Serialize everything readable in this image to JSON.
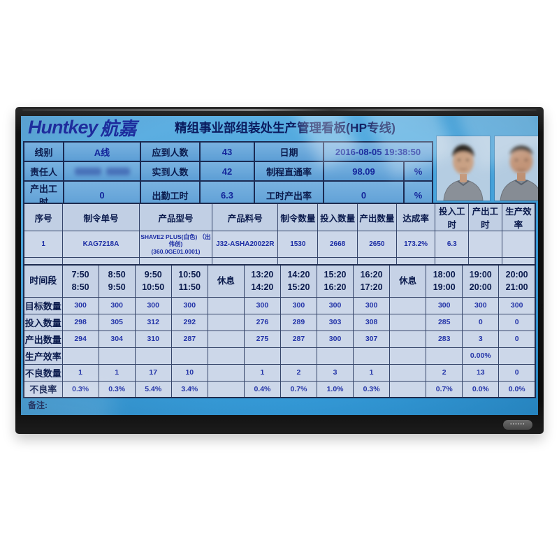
{
  "colors": {
    "screen_blue_top": "#66b2e3",
    "screen_blue_bottom": "#2d95d4",
    "cell_bg": "#ccd7e9",
    "label_text": "#0b1b4d",
    "value_text": "#1c2da4",
    "brand_blue": "#1d2d9d",
    "bezel": "#0c0c0c"
  },
  "screen": {
    "brand_latin": "Huntkey",
    "brand_cn": "航嘉",
    "title": "精组事业部组装处生产管理看板(HP专线)",
    "remark_label": "备注:",
    "sticker_dots": "••••••"
  },
  "info_table": {
    "responsible_blurred": true,
    "rows": [
      {
        "c0": "线别",
        "c1": "A线",
        "c2": "应到人数",
        "c3": "43",
        "c4": "日期",
        "c5": "2016-08-05 19:38:50",
        "c6": ""
      },
      {
        "c0": "责任人",
        "c1": "",
        "c2": "实到人数",
        "c3": "42",
        "c4": "制程直通率",
        "c5": "98.09",
        "c6": "%"
      },
      {
        "c0": "产出工时",
        "c1": "0",
        "c2": "出勤工时",
        "c3": "6.3",
        "c4": "工时产出率",
        "c5": "0",
        "c6": "%"
      }
    ]
  },
  "order_table": {
    "headers": [
      "序号",
      "制令单号",
      "产品型号",
      "产品料号",
      "制令数量",
      "投入数量",
      "产出数量",
      "达成率",
      "投入工时",
      "产出工时",
      "生产效率"
    ],
    "rows": [
      [
        "1",
        "KAG7218A",
        "SHAVE2 PLUS(白色) （出伟创)\n(360.0GE01.0001)",
        "J32-ASHA20022R",
        "1530",
        "2668",
        "2650",
        "173.2%",
        "6.3",
        "",
        ""
      ],
      [
        "",
        "",
        "",
        "",
        "",
        "",
        "",
        "",
        "",
        "",
        ""
      ],
      [
        "",
        "",
        "",
        "",
        "",
        "",
        "",
        "",
        "",
        "",
        ""
      ]
    ]
  },
  "hourly_table": {
    "corner_label": "时间段",
    "columns": [
      "7:50\n8:50",
      "8:50\n9:50",
      "9:50\n10:50",
      "10:50\n11:50",
      "休息",
      "13:20\n14:20",
      "14:20\n15:20",
      "15:20\n16:20",
      "16:20\n17:20",
      "休息",
      "18:00\n19:00",
      "19:00\n20:00",
      "20:00\n21:00"
    ],
    "rows": [
      {
        "label": "目标数量",
        "values": [
          "300",
          "300",
          "300",
          "300",
          "",
          "300",
          "300",
          "300",
          "300",
          "",
          "300",
          "300",
          "300"
        ]
      },
      {
        "label": "投入数量",
        "values": [
          "298",
          "305",
          "312",
          "292",
          "",
          "276",
          "289",
          "303",
          "308",
          "",
          "285",
          "0",
          "0"
        ]
      },
      {
        "label": "产出数量",
        "values": [
          "294",
          "304",
          "310",
          "287",
          "",
          "275",
          "287",
          "300",
          "307",
          "",
          "283",
          "3",
          "0"
        ]
      },
      {
        "label": "生产效率",
        "values": [
          "",
          "",
          "",
          "",
          "",
          "",
          "",
          "",
          "",
          "",
          "",
          "0.00%",
          ""
        ]
      },
      {
        "label": "不良数量",
        "values": [
          "1",
          "1",
          "17",
          "10",
          "",
          "1",
          "2",
          "3",
          "1",
          "",
          "2",
          "13",
          "0"
        ]
      },
      {
        "label": "不良率",
        "values": [
          "0.3%",
          "0.3%",
          "5.4%",
          "3.4%",
          "",
          "0.4%",
          "0.7%",
          "1.0%",
          "0.3%",
          "",
          "0.7%",
          "0.0%",
          "0.0%"
        ]
      }
    ]
  },
  "photos": [
    "operator-photo-left",
    "operator-photo-right"
  ]
}
